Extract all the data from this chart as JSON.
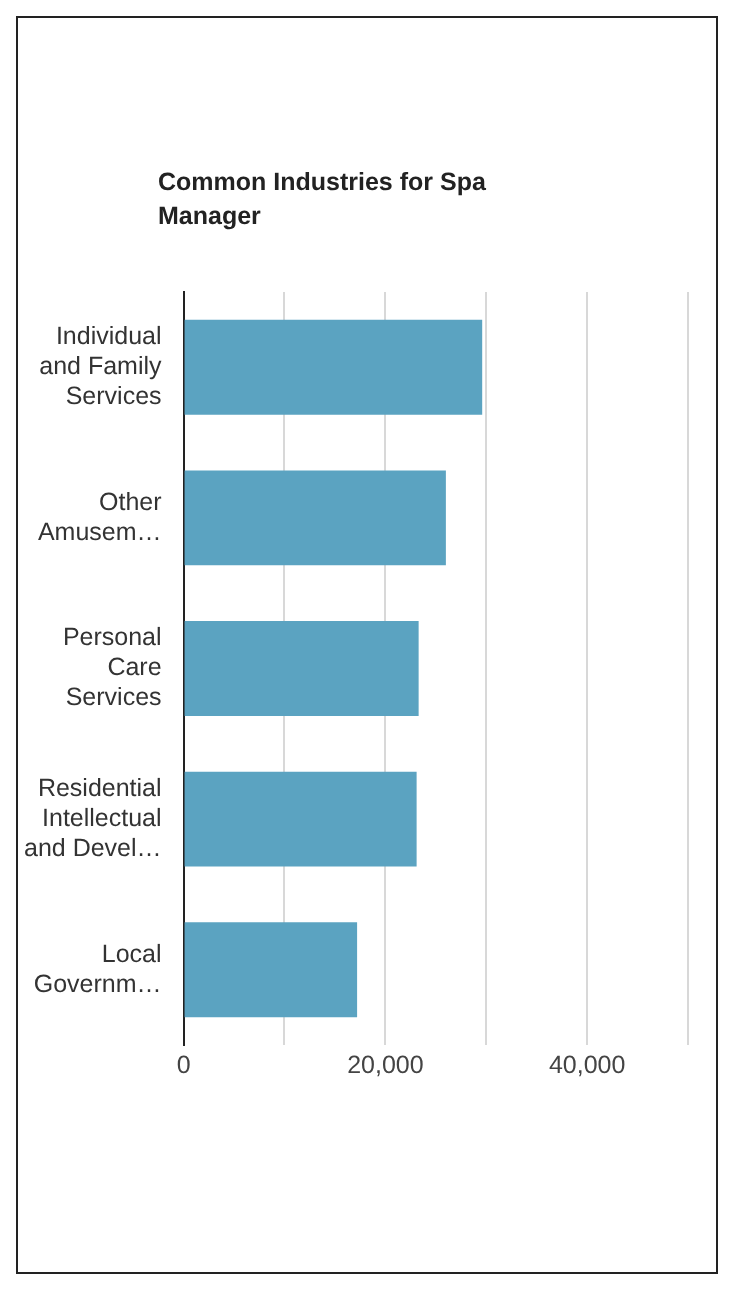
{
  "chart_data": {
    "type": "bar",
    "orientation": "horizontal",
    "title": "Common Industries for Spa Manager",
    "categories": [
      "Individual and Family Services",
      "Other Amusem…",
      "Personal Care Services",
      "Residential Intellectual and Devel…",
      "Local Governm…"
    ],
    "values": [
      29600,
      26000,
      23300,
      23100,
      17200
    ],
    "color": "#5ba3c1",
    "xlim": [
      0,
      50000
    ],
    "xticks": [
      0,
      {
        "value": 10000,
        "label": null
      },
      {
        "value": 20000,
        "label": "20,000"
      },
      {
        "value": 30000,
        "label": null
      },
      {
        "value": 40000,
        "label": "40,000"
      },
      {
        "value": 50000,
        "label": null
      }
    ],
    "grid": "x"
  }
}
